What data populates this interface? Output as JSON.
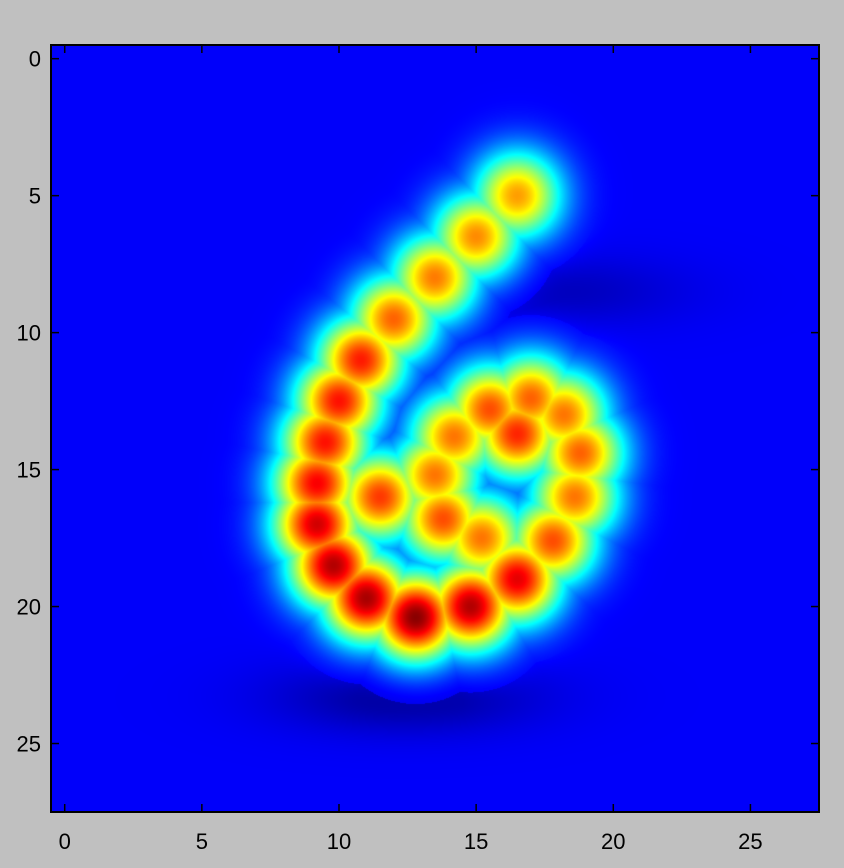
{
  "chart_data": {
    "type": "heatmap",
    "title": "",
    "xlabel": "",
    "ylabel": "",
    "xlim": [
      -0.5,
      27.5
    ],
    "ylim": [
      27.5,
      -0.5
    ],
    "y_axis_inverted": true,
    "grid": false,
    "legend": "none",
    "colormap": "jet",
    "interpolation": "smooth",
    "background_color": "#1040f0",
    "x_ticks": [
      0,
      5,
      10,
      15,
      20,
      25
    ],
    "x_tick_labels": [
      "0",
      "5",
      "10",
      "15",
      "20",
      "25"
    ],
    "y_ticks": [
      0,
      5,
      10,
      15,
      20,
      25
    ],
    "y_tick_labels": [
      "0",
      "5",
      "10",
      "15",
      "20",
      "25"
    ],
    "value_range": [
      0,
      1
    ],
    "baseline_value": 0.12,
    "blobs": [
      {
        "col": 16.5,
        "row": 5.0,
        "value": 0.72
      },
      {
        "col": 15.0,
        "row": 6.5,
        "value": 0.74
      },
      {
        "col": 13.5,
        "row": 8.0,
        "value": 0.76
      },
      {
        "col": 12.0,
        "row": 9.5,
        "value": 0.78
      },
      {
        "col": 10.8,
        "row": 11.0,
        "value": 0.85
      },
      {
        "col": 10.0,
        "row": 12.5,
        "value": 0.86
      },
      {
        "col": 9.5,
        "row": 14.0,
        "value": 0.86
      },
      {
        "col": 9.2,
        "row": 15.5,
        "value": 0.88
      },
      {
        "col": 9.2,
        "row": 17.0,
        "value": 0.92
      },
      {
        "col": 9.8,
        "row": 18.5,
        "value": 0.95
      },
      {
        "col": 11.0,
        "row": 19.7,
        "value": 0.96
      },
      {
        "col": 12.8,
        "row": 20.4,
        "value": 0.99
      },
      {
        "col": 14.8,
        "row": 20.0,
        "value": 0.95
      },
      {
        "col": 16.5,
        "row": 19.0,
        "value": 0.9
      },
      {
        "col": 17.8,
        "row": 17.6,
        "value": 0.8
      },
      {
        "col": 18.6,
        "row": 16.0,
        "value": 0.76
      },
      {
        "col": 18.8,
        "row": 14.4,
        "value": 0.78
      },
      {
        "col": 18.2,
        "row": 13.0,
        "value": 0.76
      },
      {
        "col": 17.0,
        "row": 12.4,
        "value": 0.78
      },
      {
        "col": 15.5,
        "row": 12.8,
        "value": 0.8
      },
      {
        "col": 14.2,
        "row": 13.8,
        "value": 0.76
      },
      {
        "col": 13.5,
        "row": 15.2,
        "value": 0.76
      },
      {
        "col": 13.8,
        "row": 16.8,
        "value": 0.8
      },
      {
        "col": 15.2,
        "row": 17.5,
        "value": 0.76
      },
      {
        "col": 16.5,
        "row": 13.7,
        "value": 0.84
      },
      {
        "col": 11.5,
        "row": 16.0,
        "value": 0.82
      }
    ],
    "low_regions": [
      {
        "col": 12.5,
        "row": 23.3,
        "value": 0.02
      },
      {
        "col": 18.0,
        "row": 8.5,
        "value": 0.06
      }
    ]
  }
}
